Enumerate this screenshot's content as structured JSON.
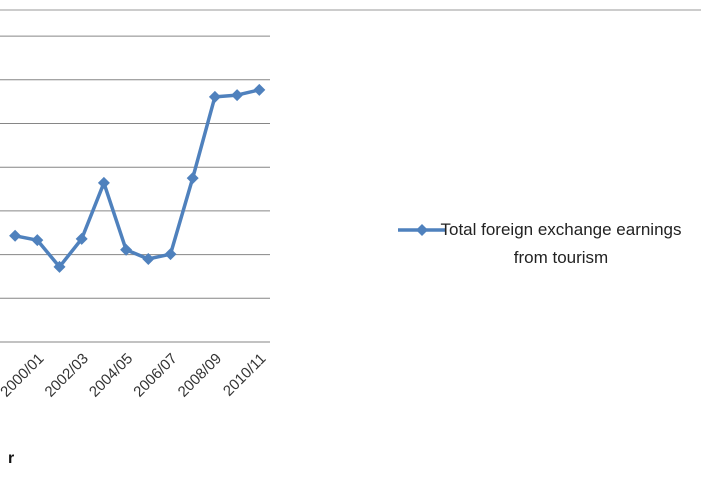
{
  "chart_data": {
    "type": "line",
    "categories": [
      null,
      "2000/01",
      null,
      "2002/03",
      null,
      "2004/05",
      null,
      "2006/07",
      null,
      "2008/09",
      null,
      "2010/11"
    ],
    "series": [
      {
        "name": "Total foreign exchange earnings from tourism",
        "color": "#4f81bd",
        "values": [
          2.43,
          2.33,
          1.72,
          2.36,
          3.64,
          2.11,
          1.9,
          2.01,
          3.75,
          5.61,
          5.65,
          5.77
        ]
      }
    ],
    "ylim": [
      0,
      7
    ],
    "yticks": [
      0,
      1,
      2,
      3,
      4,
      5,
      6,
      7
    ],
    "grid": true,
    "legend": "right"
  },
  "footer_text": "r"
}
